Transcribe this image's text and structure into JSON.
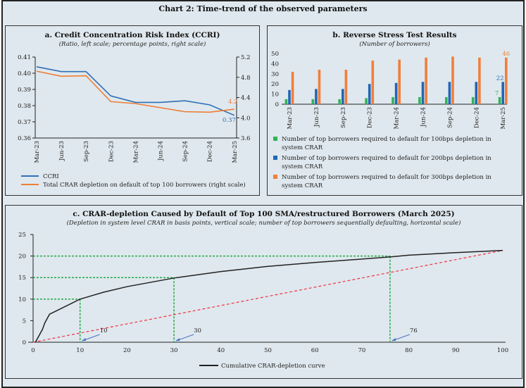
{
  "title": "Chart 2: Time-trend of the observed parameters",
  "chart_data": [
    {
      "type": "line",
      "title": "a. Credit Concentration Risk Index (CCRI)",
      "subtitle": "(Ratio, left scale; percentage points, right scale)",
      "categories": [
        "Mar-23",
        "Jun-23",
        "Sep-23",
        "Dec-23",
        "Mar-24",
        "Jun-24",
        "Sep-24",
        "Dec-24",
        "Mar-25"
      ],
      "y_left": {
        "ticks": [
          "0.36",
          "0.37",
          "0.38",
          "0.39",
          "0.40",
          "0.41"
        ],
        "lim": [
          0.36,
          0.41
        ]
      },
      "y_right": {
        "ticks": [
          "3.6",
          "4.0",
          "4.4",
          "4.8",
          "5.2"
        ],
        "lim": [
          3.6,
          5.2
        ]
      },
      "series": [
        {
          "name": "CCRI",
          "axis": "left",
          "color": "#2f6fb5",
          "values": [
            0.404,
            0.401,
            0.401,
            0.386,
            0.382,
            0.382,
            0.383,
            0.3805,
            0.374
          ],
          "end_label": "0.37"
        },
        {
          "name": "Total CRAR depletion on default of top 100 borrowers (right scale)",
          "axis": "right",
          "color": "#ef7d35",
          "values": [
            4.92,
            4.82,
            4.83,
            4.32,
            4.28,
            4.2,
            4.12,
            4.11,
            4.17
          ],
          "end_label": "4.2"
        }
      ],
      "legend": "bottom-left"
    },
    {
      "type": "bar",
      "title": "b. Reverse Stress Test Results",
      "subtitle": "(Number of borrowers)",
      "categories": [
        "Mar-23",
        "Jun-23",
        "Sep-23",
        "Dec-23",
        "Mar-24",
        "Jun-24",
        "Sep-24",
        "Dec-24",
        "Mar-25"
      ],
      "y": {
        "ticks": [
          "0",
          "10",
          "20",
          "30",
          "40",
          "50"
        ],
        "lim": [
          0,
          50
        ]
      },
      "series": [
        {
          "name": "Number of top borrowers required to default for 100bps depletion in system CRAR",
          "color": "#2fb457",
          "values": [
            5,
            5,
            5,
            6,
            7,
            7,
            7,
            7,
            7
          ],
          "end_label": "7"
        },
        {
          "name": "Number of top borrowers required to default for 200bps depletion in system CRAR",
          "color": "#2266b8",
          "values": [
            14,
            15,
            15,
            20,
            21,
            22,
            22,
            22,
            22
          ],
          "end_label": "22"
        },
        {
          "name": "Number of top borrowers required to default for 300bps depletion in system CRAR",
          "color": "#f07f3a",
          "values": [
            32,
            34,
            34,
            43,
            44,
            46,
            47,
            46,
            46
          ],
          "end_label": "46"
        }
      ],
      "legend": "bottom"
    },
    {
      "type": "line",
      "title": "c. CRAR-depletion Caused by Default of Top 100 SMA/restructured Borrowers (March 2025)",
      "subtitle": "(Depletion in system level CRAR in basis points, vertical scale; number of top borrowers sequentially defaulting, horizontal scale)",
      "x": {
        "ticks": [
          "0",
          "10",
          "20",
          "30",
          "40",
          "50",
          "60",
          "70",
          "80",
          "90",
          "100"
        ],
        "lim": [
          0,
          100
        ]
      },
      "y": {
        "ticks": [
          "0",
          "5",
          "10",
          "15",
          "20",
          "25"
        ],
        "lim": [
          0,
          25
        ]
      },
      "series": [
        {
          "name": "Cumulative CRAR-depletion curve",
          "color": "#222222",
          "points": [
            [
              0.5,
              0
            ],
            [
              2,
              3
            ],
            [
              2.5,
              4.5
            ],
            [
              3.5,
              6.5
            ],
            [
              5,
              7.3
            ],
            [
              10,
              10
            ],
            [
              15,
              11.6
            ],
            [
              20,
              12.9
            ],
            [
              30,
              14.9
            ],
            [
              40,
              16.4
            ],
            [
              50,
              17.6
            ],
            [
              60,
              18.5
            ],
            [
              70,
              19.3
            ],
            [
              76,
              19.8
            ],
            [
              80,
              20.2
            ],
            [
              90,
              20.8
            ],
            [
              100,
              21.3
            ]
          ]
        }
      ],
      "reference_line": {
        "color": "#ee3344",
        "points": [
          [
            0,
            0
          ],
          [
            100,
            21.3
          ]
        ]
      },
      "markers": [
        {
          "x": 10,
          "y": 10,
          "label": "10"
        },
        {
          "x": 30,
          "y": 15,
          "label": "30"
        },
        {
          "x": 76,
          "y": 20,
          "label": "76"
        }
      ],
      "legend": "bottom-center"
    }
  ]
}
